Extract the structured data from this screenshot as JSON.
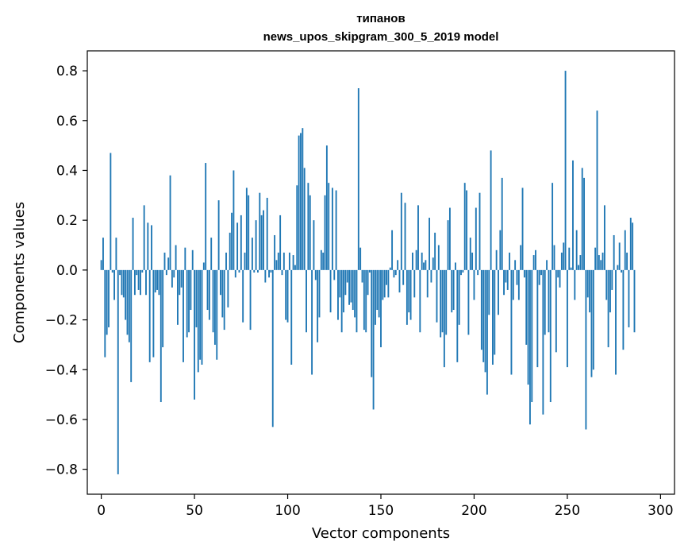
{
  "chart_data": {
    "type": "bar",
    "title": "типанов",
    "subtitle": "news_upos_skipgram_300_5_2019 model",
    "xlabel": "Vector components",
    "ylabel": "Components values",
    "xlim": [
      -7.5,
      307.5
    ],
    "ylim": [
      -0.9,
      0.88
    ],
    "xticks": [
      0,
      50,
      100,
      150,
      200,
      250,
      300
    ],
    "xtick_labels": [
      "0",
      "50",
      "100",
      "150",
      "200",
      "250",
      "300"
    ],
    "yticks": [
      -0.8,
      -0.6,
      -0.4,
      -0.2,
      0.0,
      0.2,
      0.4,
      0.6,
      0.8
    ],
    "ytick_labels": [
      "−0.8",
      "−0.6",
      "−0.4",
      "−0.2",
      "0.0",
      "0.2",
      "0.4",
      "0.6",
      "0.8"
    ],
    "grid": false,
    "bar_color": "#1f77b4",
    "series": [
      {
        "values": [
          0.04,
          0.13,
          -0.35,
          -0.26,
          -0.23,
          0.47,
          -0.01,
          -0.12,
          0.13,
          -0.82,
          -0.02,
          -0.1,
          -0.11,
          -0.2,
          -0.26,
          -0.29,
          -0.45,
          0.21,
          -0.1,
          -0.02,
          -0.08,
          -0.1,
          -0.01,
          0.26,
          -0.1,
          0.19,
          -0.37,
          0.18,
          -0.35,
          -0.09,
          -0.08,
          -0.1,
          -0.53,
          -0.31,
          0.07,
          -0.02,
          0.05,
          0.38,
          -0.07,
          -0.03,
          0.1,
          -0.22,
          -0.1,
          -0.07,
          -0.37,
          0.09,
          -0.27,
          -0.25,
          -0.16,
          0.08,
          -0.52,
          -0.23,
          -0.41,
          -0.36,
          -0.38,
          0.03,
          0.43,
          -0.16,
          -0.2,
          0.13,
          -0.25,
          -0.3,
          -0.36,
          0.28,
          -0.1,
          -0.19,
          -0.24,
          0.07,
          -0.15,
          0.15,
          0.23,
          0.4,
          -0.03,
          0.19,
          -0.01,
          0.22,
          -0.21,
          0.07,
          0.33,
          0.3,
          -0.24,
          0.13,
          -0.01,
          0.2,
          -0.01,
          0.31,
          0.22,
          0.24,
          -0.05,
          0.29,
          -0.03,
          -0.01,
          -0.63,
          0.14,
          0.04,
          0.07,
          0.22,
          -0.02,
          0.07,
          -0.2,
          -0.21,
          0.07,
          -0.38,
          0.06,
          0.02,
          0.34,
          0.54,
          0.55,
          0.57,
          0.41,
          -0.25,
          0.35,
          0.3,
          -0.42,
          0.2,
          -0.04,
          -0.29,
          -0.19,
          0.08,
          0.07,
          0.3,
          0.5,
          0.35,
          -0.17,
          0.33,
          -0.04,
          0.32,
          -0.2,
          -0.11,
          -0.25,
          -0.17,
          -0.1,
          -0.05,
          -0.14,
          -0.13,
          -0.16,
          -0.19,
          -0.25,
          0.73,
          0.09,
          -0.05,
          -0.24,
          -0.25,
          -0.1,
          -0.01,
          -0.43,
          -0.56,
          -0.22,
          -0.16,
          -0.19,
          -0.31,
          -0.12,
          -0.11,
          -0.06,
          -0.11,
          0.01,
          0.16,
          -0.03,
          -0.02,
          0.04,
          -0.09,
          0.31,
          -0.06,
          0.27,
          -0.22,
          -0.17,
          -0.2,
          0.07,
          -0.11,
          0.08,
          0.26,
          -0.25,
          0.07,
          0.03,
          0.04,
          -0.11,
          0.21,
          -0.05,
          0.05,
          0.15,
          -0.21,
          0.1,
          -0.27,
          -0.25,
          -0.39,
          -0.26,
          0.2,
          0.25,
          -0.17,
          -0.16,
          0.03,
          -0.37,
          -0.22,
          -0.02,
          -0.01,
          0.35,
          0.32,
          -0.26,
          0.13,
          0.07,
          -0.12,
          0.25,
          -0.02,
          0.31,
          -0.32,
          -0.37,
          -0.41,
          -0.5,
          -0.18,
          0.48,
          -0.38,
          -0.34,
          0.08,
          -0.18,
          0.16,
          0.37,
          -0.1,
          -0.05,
          -0.08,
          0.07,
          -0.42,
          -0.12,
          0.04,
          -0.06,
          -0.12,
          0.1,
          0.33,
          -0.03,
          -0.3,
          -0.46,
          -0.62,
          -0.53,
          0.06,
          0.08,
          -0.39,
          -0.06,
          -0.02,
          -0.58,
          -0.26,
          0.04,
          -0.25,
          -0.53,
          0.35,
          0.1,
          -0.33,
          -0.03,
          -0.07,
          0.07,
          0.11,
          0.8,
          -0.39,
          0.09,
          0.01,
          0.44,
          -0.12,
          0.16,
          0.02,
          0.06,
          0.41,
          0.37,
          -0.64,
          -0.11,
          -0.17,
          -0.43,
          -0.4,
          0.09,
          0.64,
          0.06,
          0.04,
          0.07,
          0.26,
          -0.12,
          -0.31,
          -0.17,
          -0.08,
          0.14,
          -0.42,
          0.02,
          0.11,
          -0.01,
          -0.32,
          0.16,
          0.07,
          -0.23,
          0.21,
          0.19,
          -0.25
        ]
      }
    ]
  }
}
